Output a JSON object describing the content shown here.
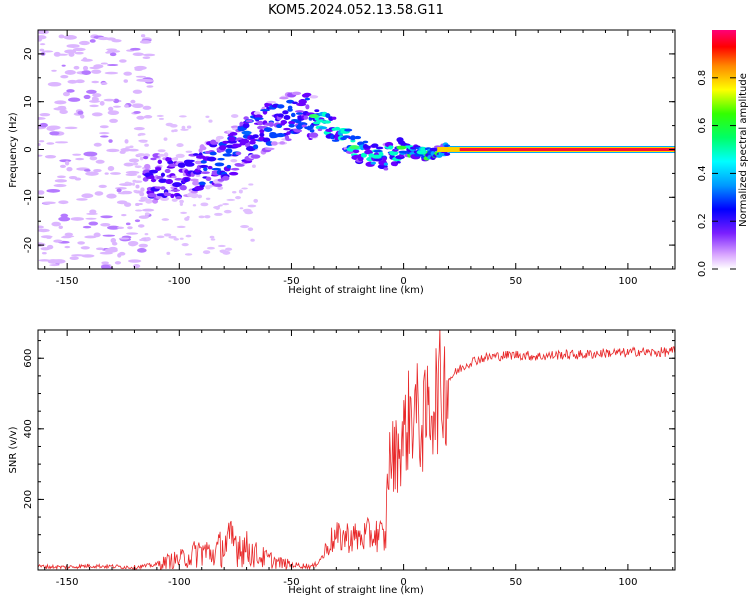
{
  "title": "KOM5.2024.052.13.58.G11",
  "chart_data": [
    {
      "type": "heatmap",
      "xlabel": "Height of straight line (km)",
      "ylabel": "Frequency (Hz)",
      "xlim": [
        -163,
        121
      ],
      "ylim": [
        -25,
        25
      ],
      "xticks": [
        -150,
        -100,
        -50,
        0,
        50,
        100
      ],
      "yticks": [
        -20,
        -10,
        0,
        10,
        20
      ],
      "colorbar": {
        "label": "Normalized spectral amplitude",
        "range": [
          0,
          1
        ],
        "ticks": [
          "0.0",
          "0.2",
          "0.4",
          "0.6",
          "0.8"
        ]
      },
      "ridge_points": [
        {
          "x": -110,
          "y": -6
        },
        {
          "x": -100,
          "y": -6
        },
        {
          "x": -90,
          "y": -4
        },
        {
          "x": -80,
          "y": -2
        },
        {
          "x": -70,
          "y": 2
        },
        {
          "x": -60,
          "y": 5
        },
        {
          "x": -50,
          "y": 7
        },
        {
          "x": -40,
          "y": 7
        },
        {
          "x": -30,
          "y": 4
        },
        {
          "x": -20,
          "y": 0
        },
        {
          "x": -10,
          "y": -2
        },
        {
          "x": 0,
          "y": 0
        },
        {
          "x": 10,
          "y": -1
        },
        {
          "x": 20,
          "y": 0
        },
        {
          "x": 50,
          "y": 0
        },
        {
          "x": 121,
          "y": 0
        }
      ]
    },
    {
      "type": "line",
      "xlabel": "Height of straight line (km)",
      "ylabel": "SNR (v/v)",
      "xlim": [
        -163,
        121
      ],
      "ylim": [
        0,
        680
      ],
      "xticks": [
        -150,
        -100,
        -50,
        0,
        50,
        100
      ],
      "yticks": [
        200,
        400,
        600
      ],
      "color": "#e8292a",
      "series": [
        {
          "x": [
            -163,
            -150,
            -140,
            -130,
            -120,
            -110,
            -105,
            -100,
            -95,
            -90,
            -85,
            -80,
            -75,
            -70,
            -65,
            -60,
            -55,
            -50,
            -45,
            -40,
            -36,
            -33,
            -30,
            -25,
            -20,
            -15,
            -10,
            -8,
            -7,
            -5,
            -3,
            0,
            3,
            5,
            8,
            10,
            12,
            15,
            20,
            25,
            30,
            35,
            40,
            50,
            60,
            70,
            80,
            90,
            100,
            105,
            110,
            121
          ],
          "y": [
            10,
            8,
            12,
            10,
            8,
            15,
            25,
            30,
            40,
            55,
            45,
            70,
            80,
            60,
            40,
            30,
            20,
            15,
            12,
            10,
            40,
            80,
            90,
            95,
            90,
            100,
            100,
            80,
            300,
            320,
            330,
            380,
            440,
            460,
            400,
            430,
            470,
            500,
            540,
            570,
            590,
            600,
            605,
            610,
            605,
            610,
            610,
            615,
            615,
            620,
            615,
            620
          ]
        }
      ]
    }
  ]
}
